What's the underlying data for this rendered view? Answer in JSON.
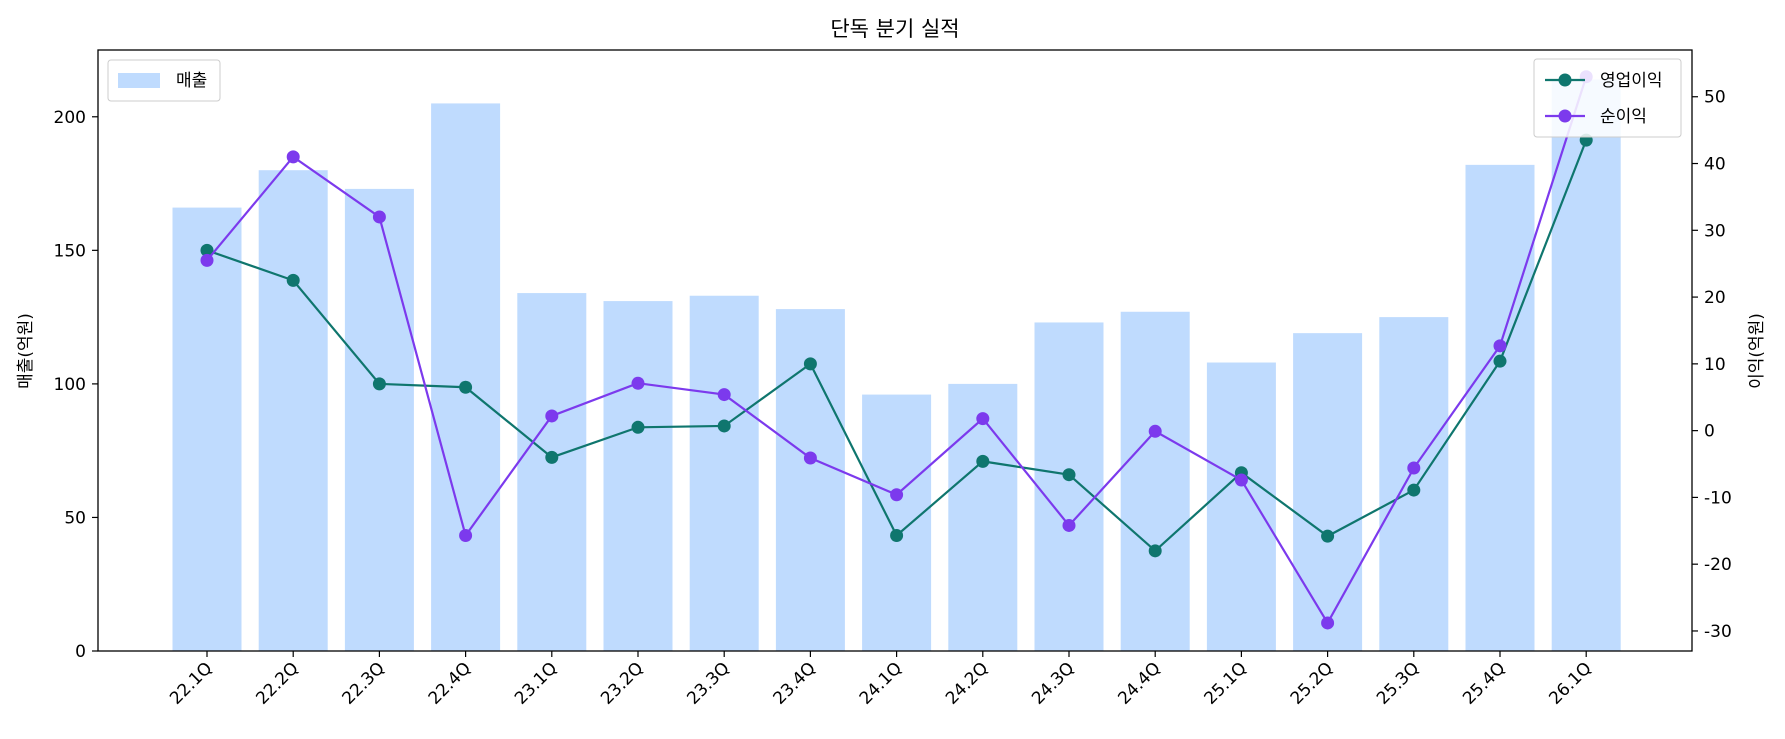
{
  "chart_data": {
    "type": "bar",
    "title": "단독 분기 실적",
    "categories": [
      "22.1Q",
      "22.2Q",
      "22.3Q",
      "22.4Q",
      "23.1Q",
      "23.2Q",
      "23.3Q",
      "23.4Q",
      "24.1Q",
      "24.2Q",
      "24.3Q",
      "24.4Q",
      "25.1Q",
      "25.2Q",
      "25.3Q",
      "25.4Q",
      "26.1Q"
    ],
    "ylabel_left": "매출(억원)",
    "ylabel_right": "이익(억원)",
    "ylim_left": [
      0,
      225
    ],
    "ylim_right": [
      -33,
      57
    ],
    "yticks_left": [
      0,
      50,
      100,
      150,
      200
    ],
    "yticks_right": [
      -30,
      -20,
      -10,
      0,
      10,
      20,
      30,
      40,
      50
    ],
    "grid": false,
    "series": [
      {
        "name": "매출",
        "kind": "bar",
        "axis": "left",
        "color": "#bfdbfe",
        "values": [
          166,
          180,
          173,
          205,
          134,
          131,
          133,
          128,
          96,
          100,
          123,
          127,
          108,
          119,
          125,
          182,
          214
        ]
      },
      {
        "name": "영업이익",
        "kind": "line",
        "axis": "right",
        "color": "#0f766e",
        "values": [
          27,
          22.5,
          7,
          6.5,
          -4,
          0.5,
          0.7,
          10,
          -15.7,
          -4.6,
          -6.6,
          -18,
          -6.3,
          -15.8,
          -8.9,
          10.4,
          43.5
        ]
      },
      {
        "name": "순이익",
        "kind": "line",
        "axis": "right",
        "color": "#7c3aed",
        "values": [
          25.5,
          41,
          32,
          -15.7,
          2.2,
          7.1,
          5.4,
          -4.1,
          -9.6,
          1.8,
          -14.2,
          -0.1,
          -7.4,
          -28.8,
          -5.6,
          12.7,
          53
        ]
      }
    ],
    "legend_left": {
      "placement": "top-left",
      "entries": [
        "매출"
      ]
    },
    "legend_right": {
      "placement": "top-right",
      "entries": [
        "영업이익",
        "순이익"
      ]
    }
  }
}
